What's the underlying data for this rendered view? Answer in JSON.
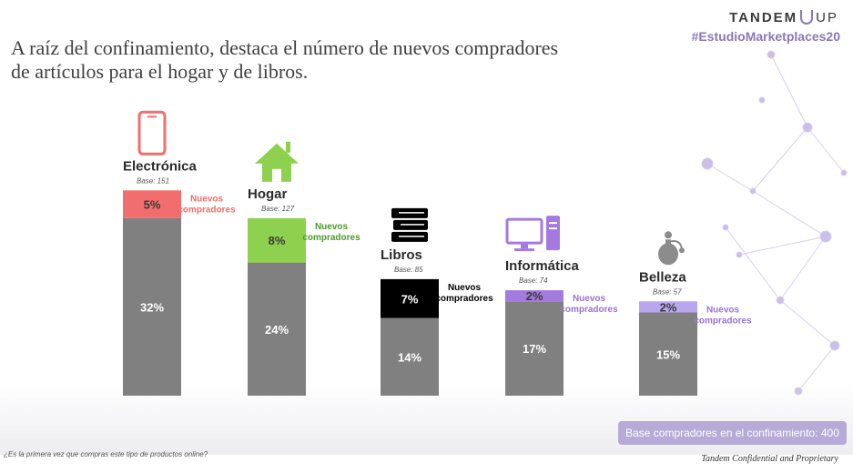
{
  "header": {
    "title_line1": "A raíz del confinamiento, destaca el número de nuevos compradores",
    "title_line2": "de artículos para el hogar y de libros.",
    "brand": "TANDEM",
    "brand_up": "UP",
    "hashtag": "#EstudioMarketplaces20"
  },
  "footer": {
    "base_total": "Base compradores en el confinamiento: 400",
    "footnote": "¿Es la primera vez que compras este tipo de productos online?",
    "confidential": "Tandem Confidential and Proprietary"
  },
  "colors": {
    "gray": "#808080",
    "electronica": "#f26d6d",
    "hogar": "#8dd14f",
    "libros": "#000000",
    "informatica": "#a57ae0",
    "belleza": "#b9a6ef",
    "electronica_label": "#f26d6d",
    "hogar_label": "#4a9a2a",
    "libros_label": "#000000",
    "informatica_label": "#9b72d8",
    "belleza_label": "#9b72d8"
  },
  "chart_data": {
    "type": "bar",
    "stacked": true,
    "categories": [
      "Electrónica",
      "Hogar",
      "Libros",
      "Informática",
      "Belleza"
    ],
    "bases": [
      "Base: 151",
      "Base: 127",
      "Base: 85",
      "Base: 74",
      "Base: 57"
    ],
    "icons": [
      "smartphone-icon",
      "house-icon",
      "books-icon",
      "computer-icon",
      "perfume-bottle-icon"
    ],
    "series": [
      {
        "values": [
          32,
          24,
          14,
          17,
          15
        ],
        "labels": [
          "32%",
          "24%",
          "14%",
          "17%",
          "15%"
        ]
      },
      {
        "name": "Nuevos compradores",
        "values": [
          5,
          8,
          7,
          2,
          2
        ],
        "labels": [
          "5%",
          "8%",
          "7%",
          "2%",
          "2%"
        ]
      }
    ],
    "annotation": "Nuevos compradores",
    "legend": "none",
    "grid": false
  }
}
